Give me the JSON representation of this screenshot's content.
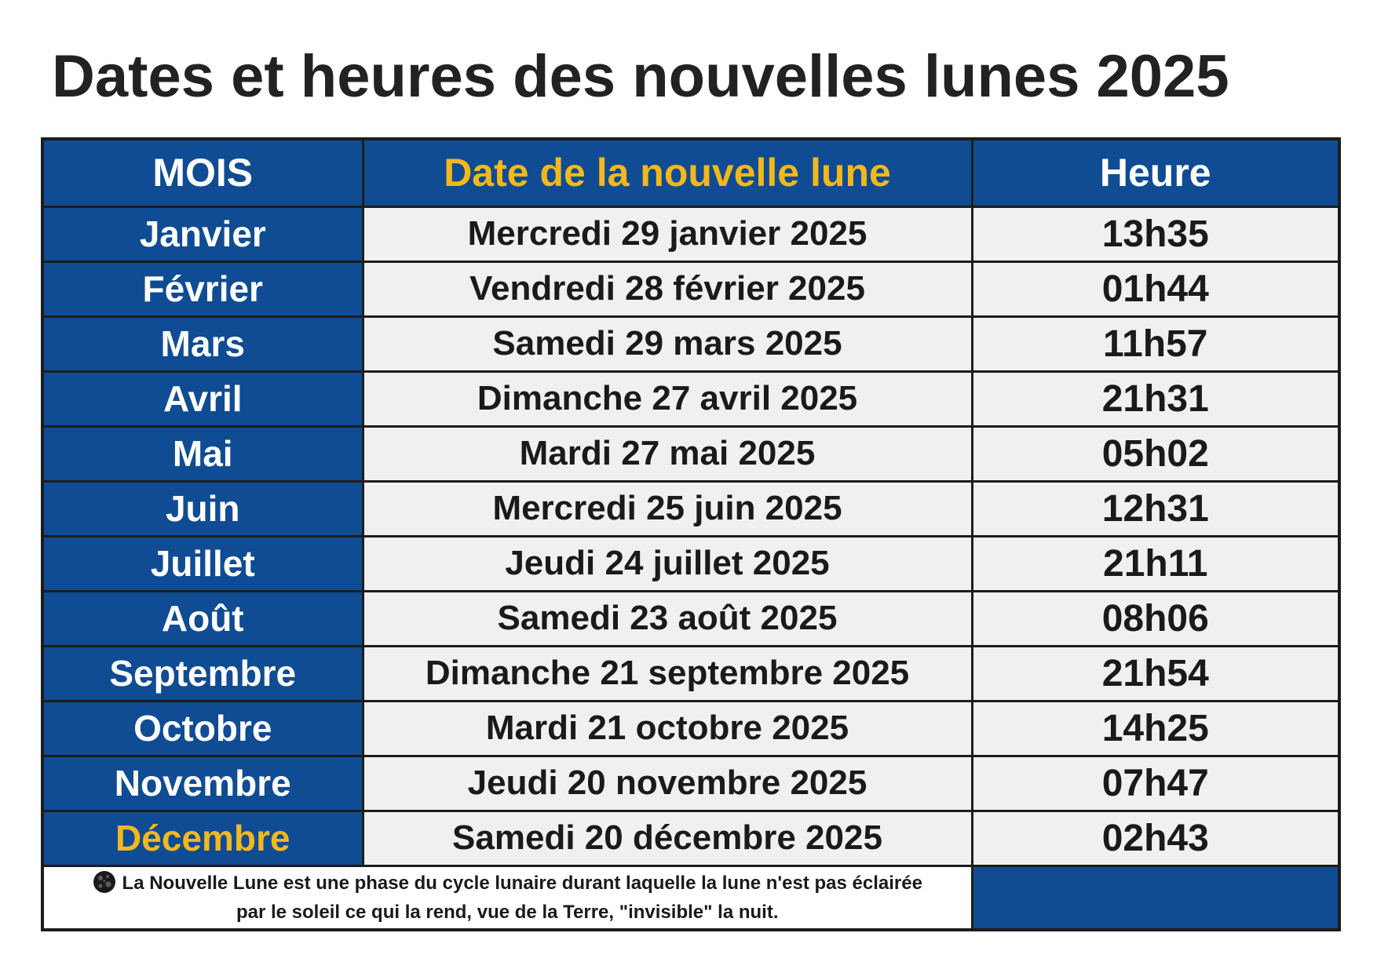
{
  "title": "Dates et heures des nouvelles lunes 2025",
  "colors": {
    "header_bg": "#0f4c93",
    "accent_yellow": "#f3b81b",
    "cell_bg": "#f0f0f0",
    "border": "#1c1c1c"
  },
  "table": {
    "headers": {
      "month": "MOIS",
      "date": "Date de la nouvelle lune",
      "time": "Heure"
    },
    "rows": [
      {
        "month": "Janvier",
        "date": "Mercredi 29 janvier 2025",
        "time": "13h35"
      },
      {
        "month": "Février",
        "date": "Vendredi 28 février 2025",
        "time": "01h44"
      },
      {
        "month": "Mars",
        "date": "Samedi 29 mars 2025",
        "time": "11h57"
      },
      {
        "month": "Avril",
        "date": "Dimanche 27 avril 2025",
        "time": "21h31"
      },
      {
        "month": "Mai",
        "date": "Mardi 27 mai 2025",
        "time": "05h02"
      },
      {
        "month": "Juin",
        "date": "Mercredi 25 juin 2025",
        "time": "12h31"
      },
      {
        "month": "Juillet",
        "date": "Jeudi 24 juillet 2025",
        "time": "21h11"
      },
      {
        "month": "Août",
        "date": "Samedi 23 août 2025",
        "time": "08h06"
      },
      {
        "month": "Septembre",
        "date": "Dimanche 21 septembre 2025",
        "time": "21h54"
      },
      {
        "month": "Octobre",
        "date": "Mardi 21 octobre 2025",
        "time": "14h25"
      },
      {
        "month": "Novembre",
        "date": "Jeudi 20 novembre 2025",
        "time": "07h47"
      },
      {
        "month": "Décembre",
        "date": "Samedi 20 décembre 2025",
        "time": "02h43"
      }
    ],
    "note": {
      "icon": "new-moon-icon",
      "line1": "La Nouvelle Lune est une phase du cycle lunaire durant laquelle la lune n'est pas éclairée",
      "line2": "par le soleil ce qui la rend, vue de la Terre, \"invisible\" la nuit."
    }
  }
}
